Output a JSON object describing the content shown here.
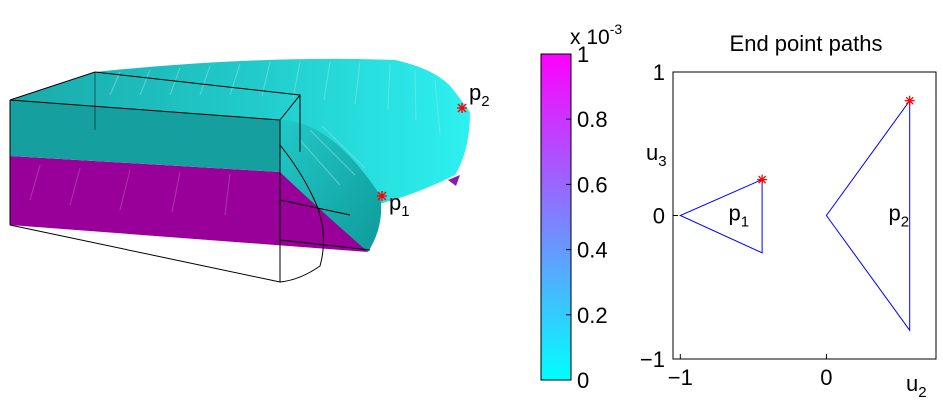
{
  "figure": {
    "points": {
      "p1": {
        "letter": "p",
        "sub": "1"
      },
      "p2": {
        "letter": "p",
        "sub": "2"
      }
    },
    "colorbar": {
      "exponent_prefix": "x 10",
      "exponent_power": "-3",
      "ticks": [
        "1",
        "0.8",
        "0.6",
        "0.4",
        "0.2",
        "0"
      ],
      "color_low": "#00ffff",
      "color_high": "#ff00ff"
    },
    "colors": {
      "beam_top": "#1ecfcf",
      "beam_shadow": "#158f8f",
      "beam_bottom": "#990099",
      "marker": "#ff0000",
      "path_line": "#0000ff"
    }
  },
  "chart_data": {
    "type": "line",
    "title": "End point paths",
    "xlabel": {
      "letter": "u",
      "sub": "2"
    },
    "ylabel": {
      "letter": "u",
      "sub": "3"
    },
    "xlim": [
      -1.05,
      0.75
    ],
    "ylim": [
      -1,
      1
    ],
    "xticks": [
      -1,
      0
    ],
    "yticks": [
      -1,
      0,
      1
    ],
    "xtick_labels": [
      "−1",
      "0"
    ],
    "ytick_labels": [
      "−1",
      "0",
      "1"
    ],
    "series": [
      {
        "label": {
          "letter": "p",
          "sub": "1"
        },
        "x": [
          -0.44,
          -1.0,
          -0.44,
          -0.44
        ],
        "y": [
          0.25,
          0.0,
          -0.26,
          0.25
        ],
        "marker_x": -0.44,
        "marker_y": 0.25
      },
      {
        "label": {
          "letter": "p",
          "sub": "2"
        },
        "x": [
          0.57,
          0.0,
          0.57,
          0.57
        ],
        "y": [
          0.8,
          0.0,
          -0.8,
          0.8
        ],
        "marker_x": 0.57,
        "marker_y": 0.8
      }
    ]
  }
}
